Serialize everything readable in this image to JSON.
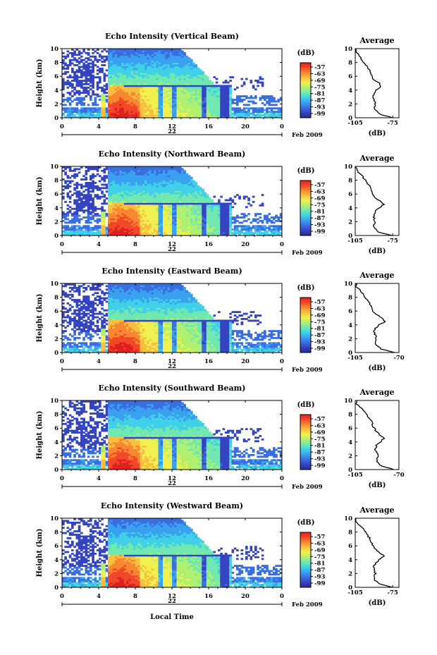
{
  "figure": {
    "xaxis_common_label": "Local Time",
    "date_suffix": "Feb 2009",
    "day_label": "22"
  },
  "colorbar": {
    "unit": "(dB)",
    "tick_labels": [
      "-57",
      "-63",
      "-69",
      "-75",
      "-81",
      "-87",
      "-93",
      "-99"
    ],
    "colors": [
      "#2a2a90",
      "#3544c0",
      "#3a6ee0",
      "#3aa0f0",
      "#40d0e8",
      "#70e8b0",
      "#b0f070",
      "#f0f050",
      "#f8c040",
      "#f88830",
      "#f04828",
      "#e02020"
    ]
  },
  "chart_data": [
    {
      "type": "heatmap",
      "title": "Echo Intensity (Vertical Beam)",
      "ylabel": "Height (km)",
      "xlim": [
        0,
        24
      ],
      "ylim": [
        0,
        10
      ],
      "xticks": [
        "0",
        "4",
        "8",
        "12",
        "16",
        "20",
        "0"
      ],
      "yticks": [
        "0",
        "2",
        "4",
        "6",
        "8",
        "10"
      ],
      "profile": {
        "title": "Average",
        "xlabel": "(dB)",
        "xticks": [
          "-105",
          "-75"
        ],
        "xlim": [
          -105,
          -70
        ],
        "heights": [
          0,
          0.5,
          1,
          1.5,
          2,
          2.5,
          3,
          3.5,
          4,
          4.5,
          5,
          5.5,
          6,
          6.5,
          7,
          7.5,
          8,
          8.5,
          9,
          9.5,
          10
        ],
        "values": [
          -75,
          -85,
          -88,
          -90,
          -89,
          -90,
          -91,
          -90,
          -88,
          -84,
          -86,
          -90,
          -92,
          -93,
          -94,
          -96,
          -98,
          -100,
          -102,
          -104,
          -104
        ]
      }
    },
    {
      "type": "heatmap",
      "title": "Echo Intensity (Northward Beam)",
      "ylabel": "Height (km)",
      "xlim": [
        0,
        24
      ],
      "ylim": [
        0,
        10
      ],
      "xticks": [
        "0",
        "4",
        "8",
        "12",
        "16",
        "20",
        "0"
      ],
      "yticks": [
        "0",
        "2",
        "4",
        "6",
        "8",
        "10"
      ],
      "profile": {
        "title": "Average",
        "xlabel": "(dB)",
        "xticks": [
          "-105",
          "-75"
        ],
        "xlim": [
          -105,
          -70
        ],
        "heights": [
          0,
          0.5,
          1,
          1.5,
          2,
          2.5,
          3,
          3.5,
          4,
          4.5,
          5,
          5.5,
          6,
          6.5,
          7,
          7.5,
          8,
          8.5,
          9,
          9.5,
          10
        ],
        "values": [
          -76,
          -86,
          -89,
          -90,
          -89,
          -90,
          -90,
          -89,
          -86,
          -82,
          -85,
          -89,
          -91,
          -92,
          -93,
          -95,
          -97,
          -99,
          -102,
          -104,
          -104
        ]
      }
    },
    {
      "type": "heatmap",
      "title": "Echo Intensity (Eastward Beam)",
      "ylabel": "Height (km)",
      "xlim": [
        0,
        24
      ],
      "ylim": [
        0,
        10
      ],
      "xticks": [
        "0",
        "4",
        "8",
        "12",
        "16",
        "20",
        "0"
      ],
      "yticks": [
        "0",
        "2",
        "4",
        "6",
        "8",
        "10"
      ],
      "profile": {
        "title": "Average",
        "xlabel": "(dB)",
        "xticks": [
          "-105",
          "-70"
        ],
        "xlim": [
          -105,
          -70
        ],
        "heights": [
          0,
          0.5,
          1,
          1.5,
          2,
          2.5,
          3,
          3.5,
          4,
          4.5,
          5,
          5.5,
          6,
          6.5,
          7,
          7.5,
          8,
          8.5,
          9,
          9.5,
          10
        ],
        "values": [
          -73,
          -84,
          -88,
          -89,
          -88,
          -89,
          -90,
          -89,
          -86,
          -81,
          -84,
          -88,
          -91,
          -92,
          -93,
          -95,
          -97,
          -99,
          -101,
          -104,
          -104
        ]
      }
    },
    {
      "type": "heatmap",
      "title": "Echo Intensity (Southward Beam)",
      "ylabel": "Height (km)",
      "xlim": [
        0,
        24
      ],
      "ylim": [
        0,
        10
      ],
      "xticks": [
        "0",
        "4",
        "8",
        "12",
        "16",
        "20",
        "0"
      ],
      "yticks": [
        "0",
        "2",
        "4",
        "6",
        "8",
        "10"
      ],
      "profile": {
        "title": "Average",
        "xlabel": "(dB)",
        "xticks": [
          "-105",
          "-70"
        ],
        "xlim": [
          -105,
          -70
        ],
        "heights": [
          0,
          0.5,
          1,
          1.5,
          2,
          2.5,
          3,
          3.5,
          4,
          4.5,
          5,
          5.5,
          6,
          6.5,
          7,
          7.5,
          8,
          8.5,
          9,
          9.5,
          10
        ],
        "values": [
          -74,
          -84,
          -87,
          -88,
          -87,
          -88,
          -89,
          -88,
          -85,
          -82,
          -85,
          -88,
          -90,
          -91,
          -92,
          -94,
          -96,
          -98,
          -101,
          -104,
          -104
        ]
      }
    },
    {
      "type": "heatmap",
      "title": "Echo Intensity (Westward Beam)",
      "ylabel": "Height (km)",
      "xlim": [
        0,
        24
      ],
      "ylim": [
        0,
        10
      ],
      "xticks": [
        "0",
        "4",
        "8",
        "12",
        "16",
        "20",
        "0"
      ],
      "yticks": [
        "0",
        "2",
        "4",
        "6",
        "8",
        "10"
      ],
      "profile": {
        "title": "Average",
        "xlabel": "(dB)",
        "xticks": [
          "-105",
          "-75"
        ],
        "xlim": [
          -105,
          -70
        ],
        "heights": [
          0,
          0.5,
          1,
          1.5,
          2,
          2.5,
          3,
          3.5,
          4,
          4.5,
          5,
          5.5,
          6,
          6.5,
          7,
          7.5,
          8,
          8.5,
          9,
          9.5,
          10
        ],
        "values": [
          -75,
          -86,
          -89,
          -90,
          -89,
          -90,
          -90,
          -89,
          -86,
          -82,
          -85,
          -89,
          -91,
          -92,
          -93,
          -95,
          -97,
          -99,
          -102,
          -104,
          -104
        ]
      }
    }
  ]
}
